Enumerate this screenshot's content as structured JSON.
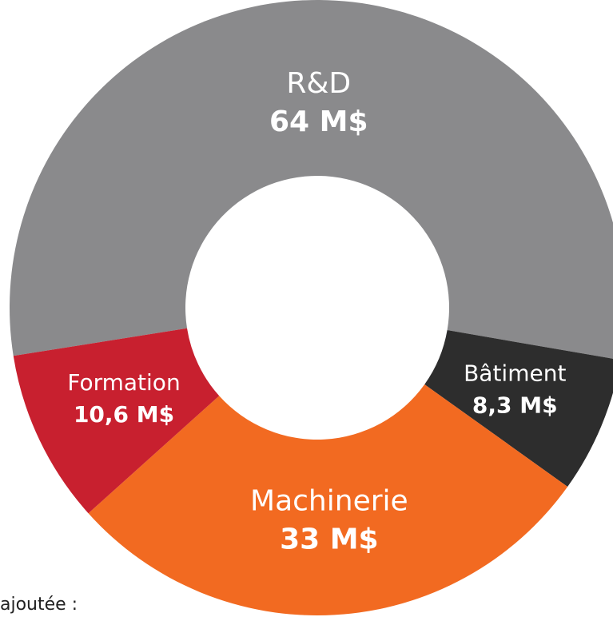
{
  "chart_data": {
    "type": "donut",
    "categories": [
      "R&D",
      "Bâtiment",
      "Machinerie",
      "Formation"
    ],
    "values": [
      64,
      8.3,
      33,
      10.6
    ],
    "value_labels": [
      "64 M$",
      "8,3 M$",
      "33 M$",
      "10,6 M$"
    ],
    "colors": [
      "#8a8a8c",
      "#2d2d2d",
      "#f26a21",
      "#c8202f"
    ]
  },
  "note": "ajoutée :"
}
